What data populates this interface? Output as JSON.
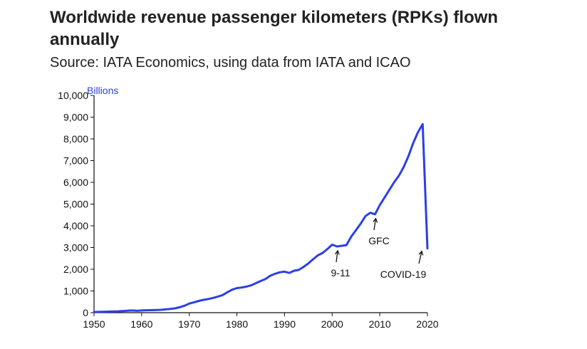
{
  "title": "Worldwide revenue passenger kilometers (RPKs) flown annually",
  "subtitle": "Source: IATA Economics, using data from IATA and ICAO",
  "colors": {
    "series": "#2b3fe8",
    "axis": "#111111",
    "unit": "#2b3fe8"
  },
  "chart_data": {
    "type": "line",
    "title": "Worldwide revenue passenger kilometers (RPKs) flown annually",
    "subtitle": "Source: IATA Economics, using data from IATA and ICAO",
    "xlabel": "",
    "ylabel": "Billions",
    "xlim": [
      1950,
      2020
    ],
    "ylim": [
      0,
      10000
    ],
    "x_ticks": [
      1950,
      1960,
      1970,
      1980,
      1990,
      2000,
      2010,
      2020
    ],
    "y_ticks": [
      0,
      1000,
      2000,
      3000,
      4000,
      5000,
      6000,
      7000,
      8000,
      9000,
      10000
    ],
    "y_tick_labels": [
      "0",
      "1,000",
      "2,000",
      "3,000",
      "4,000",
      "5,000",
      "6,000",
      "7,000",
      "8,000",
      "9,000",
      "10,000"
    ],
    "grid": false,
    "legend": "none",
    "series": [
      {
        "x": [
          1950,
          1951,
          1952,
          1953,
          1954,
          1955,
          1956,
          1957,
          1958,
          1959,
          1960,
          1961,
          1962,
          1963,
          1964,
          1965,
          1966,
          1967,
          1968,
          1969,
          1970,
          1971,
          1972,
          1973,
          1974,
          1975,
          1976,
          1977,
          1978,
          1979,
          1980,
          1981,
          1982,
          1983,
          1984,
          1985,
          1986,
          1987,
          1988,
          1989,
          1990,
          1991,
          1992,
          1993,
          1994,
          1995,
          1996,
          1997,
          1998,
          1999,
          2000,
          2001,
          2002,
          2003,
          2004,
          2005,
          2006,
          2007,
          2008,
          2009,
          2010,
          2011,
          2012,
          2013,
          2014,
          2015,
          2016,
          2017,
          2018,
          2019,
          2020
        ],
        "values": [
          28,
          35,
          42,
          48,
          55,
          62,
          75,
          90,
          100,
          85,
          100,
          110,
          115,
          120,
          130,
          150,
          170,
          200,
          250,
          320,
          420,
          480,
          540,
          590,
          630,
          680,
          740,
          810,
          940,
          1060,
          1130,
          1160,
          1200,
          1260,
          1360,
          1460,
          1550,
          1700,
          1790,
          1860,
          1890,
          1830,
          1930,
          1970,
          2110,
          2270,
          2460,
          2640,
          2750,
          2930,
          3130,
          3050,
          3080,
          3110,
          3500,
          3800,
          4100,
          4450,
          4600,
          4530,
          4950,
          5300,
          5650,
          6000,
          6300,
          6700,
          7200,
          7800,
          8300,
          8680,
          2960
        ]
      }
    ],
    "annotations": [
      {
        "text": "9-11",
        "x": 2001,
        "y": 3050
      },
      {
        "text": "GFC",
        "x": 2009,
        "y": 4530
      },
      {
        "text": "COVID-19",
        "x": 2020,
        "y": 2960
      }
    ]
  }
}
